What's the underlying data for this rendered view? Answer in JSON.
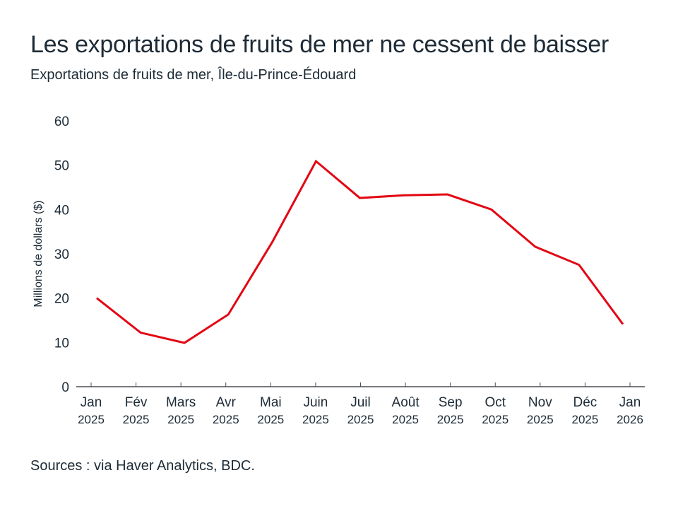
{
  "title": "Les exportations de fruits de mer ne cessent de baisser",
  "subtitle": "Exportations de fruits de mer, Île-du-Prince-Édouard",
  "source": "Sources : via Haver Analytics, BDC.",
  "chart_data": {
    "type": "line",
    "title": "Les exportations de fruits de mer ne cessent de baisser",
    "subtitle": "Exportations de fruits de mer, Île-du-Prince-Édouard",
    "xlabel": "",
    "ylabel": "Millions de dollars ($)",
    "ylim": [
      0,
      60
    ],
    "yticks": [
      "0",
      "10",
      "20",
      "30",
      "40",
      "50",
      "60"
    ],
    "grid": false,
    "categories": [
      {
        "month": "Jan",
        "year": "2025"
      },
      {
        "month": "Fév",
        "year": "2025"
      },
      {
        "month": "Mars",
        "year": "2025"
      },
      {
        "month": "Avr",
        "year": "2025"
      },
      {
        "month": "Mai",
        "year": "2025"
      },
      {
        "month": "Juin",
        "year": "2025"
      },
      {
        "month": "Juil",
        "year": "2025"
      },
      {
        "month": "Août",
        "year": "2025"
      },
      {
        "month": "Sep",
        "year": "2025"
      },
      {
        "month": "Oct",
        "year": "2025"
      },
      {
        "month": "Nov",
        "year": "2025"
      },
      {
        "month": "Déc",
        "year": "2025"
      },
      {
        "month": "Jan",
        "year": "2026"
      }
    ],
    "series": [
      {
        "name": "Exportations de fruits de mer",
        "color": "#e30613",
        "values": [
          20.0,
          12.2,
          9.9,
          16.3,
          32.6,
          50.9,
          42.6,
          43.2,
          43.4,
          40.0,
          31.6,
          27.5,
          14.1
        ]
      }
    ]
  }
}
